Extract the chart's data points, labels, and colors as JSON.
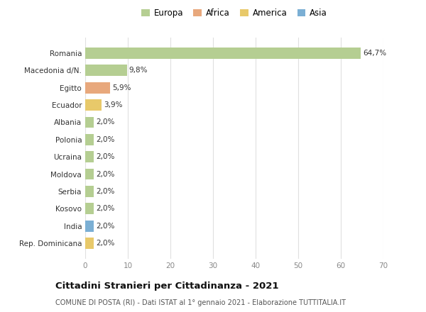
{
  "categories": [
    "Romania",
    "Macedonia d/N.",
    "Egitto",
    "Ecuador",
    "Albania",
    "Polonia",
    "Ucraina",
    "Moldova",
    "Serbia",
    "Kosovo",
    "India",
    "Rep. Dominicana"
  ],
  "values": [
    64.7,
    9.8,
    5.9,
    3.9,
    2.0,
    2.0,
    2.0,
    2.0,
    2.0,
    2.0,
    2.0,
    2.0
  ],
  "labels": [
    "64,7%",
    "9,8%",
    "5,9%",
    "3,9%",
    "2,0%",
    "2,0%",
    "2,0%",
    "2,0%",
    "2,0%",
    "2,0%",
    "2,0%",
    "2,0%"
  ],
  "colors": [
    "#b5ce92",
    "#b5ce92",
    "#e8a87c",
    "#e8c96a",
    "#b5ce92",
    "#b5ce92",
    "#b5ce92",
    "#b5ce92",
    "#b5ce92",
    "#b5ce92",
    "#7bafd4",
    "#e8c96a"
  ],
  "legend_labels": [
    "Europa",
    "Africa",
    "America",
    "Asia"
  ],
  "legend_colors": [
    "#b5ce92",
    "#e8a87c",
    "#e8c96a",
    "#7bafd4"
  ],
  "xlim": [
    0,
    70
  ],
  "xticks": [
    0,
    10,
    20,
    30,
    40,
    50,
    60,
    70
  ],
  "title": "Cittadini Stranieri per Cittadinanza - 2021",
  "subtitle": "COMUNE DI POSTA (RI) - Dati ISTAT al 1° gennaio 2021 - Elaborazione TUTTITALIA.IT",
  "background_color": "#ffffff",
  "grid_color": "#e0e0e0",
  "bar_height": 0.65
}
